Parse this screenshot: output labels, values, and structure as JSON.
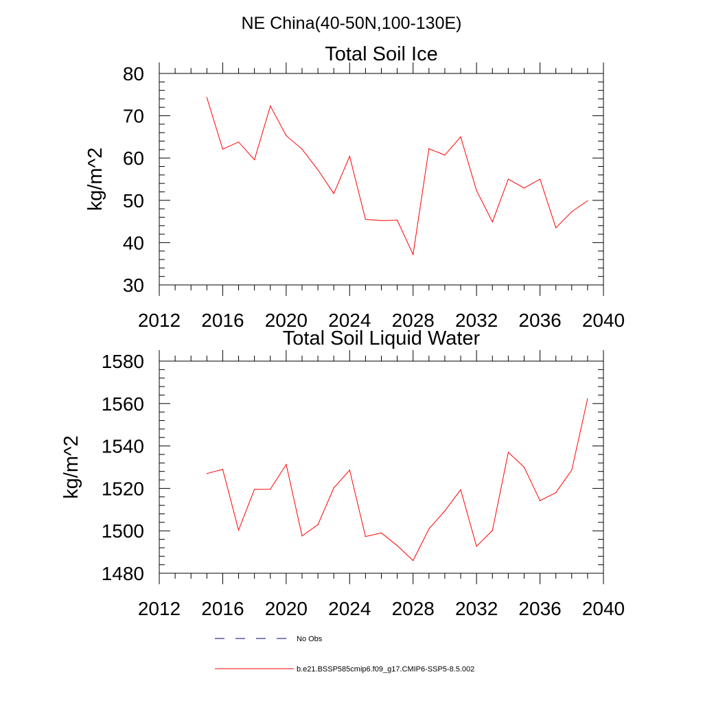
{
  "figure": {
    "suptitle": "NE China(40-50N,100-130E)"
  },
  "legend": [
    {
      "label": "No Obs",
      "style": "dashed",
      "color": "#000080"
    },
    {
      "label": "b.e21.BSSP585cmip6.f09_g17.CMIP6-SSP5-8.5.002",
      "style": "solid",
      "color": "#ff0000"
    }
  ],
  "chart_data": [
    {
      "type": "line",
      "title": "Total Soil Ice",
      "ylabel": "kg/m^2",
      "xlabel": "",
      "xlim": [
        2012,
        2040
      ],
      "ylim": [
        30,
        80
      ],
      "xticks": [
        2012,
        2016,
        2020,
        2024,
        2028,
        2032,
        2036,
        2040
      ],
      "yticks": [
        30,
        40,
        50,
        60,
        70,
        80
      ],
      "grid": false,
      "series": [
        {
          "name": "b.e21.BSSP585cmip6.f09_g17.CMIP6-SSP5-8.5.002",
          "color": "#ff0000",
          "x": [
            2015,
            2016,
            2017,
            2018,
            2019,
            2020,
            2021,
            2022,
            2023,
            2024,
            2025,
            2026,
            2027,
            2028,
            2029,
            2030,
            2031,
            2032,
            2033,
            2034,
            2035,
            2036,
            2037,
            2038,
            2039
          ],
          "y": [
            74.3,
            62.1,
            63.8,
            59.6,
            72.3,
            65.3,
            62.1,
            57.2,
            51.6,
            60.4,
            45.5,
            45.2,
            45.3,
            37.2,
            62.2,
            60.7,
            65.0,
            52.3,
            44.9,
            55.0,
            52.9,
            55.0,
            43.5,
            47.3,
            49.9
          ]
        }
      ]
    },
    {
      "type": "line",
      "title": "Total Soil Liquid Water",
      "ylabel": "kg/m^2",
      "xlabel": "",
      "xlim": [
        2012,
        2040
      ],
      "ylim": [
        1480,
        1580
      ],
      "xticks": [
        2012,
        2016,
        2020,
        2024,
        2028,
        2032,
        2036,
        2040
      ],
      "yticks": [
        1480,
        1500,
        1520,
        1540,
        1560,
        1580
      ],
      "grid": false,
      "series": [
        {
          "name": "b.e21.BSSP585cmip6.f09_g17.CMIP6-SSP5-8.5.002",
          "color": "#ff0000",
          "x": [
            2015,
            2016,
            2017,
            2018,
            2019,
            2020,
            2021,
            2022,
            2023,
            2024,
            2025,
            2026,
            2027,
            2028,
            2029,
            2030,
            2031,
            2032,
            2033,
            2034,
            2035,
            2036,
            2037,
            2038,
            2039
          ],
          "y": [
            1527.0,
            1529.0,
            1500.3,
            1519.5,
            1519.6,
            1531.3,
            1497.6,
            1502.9,
            1520.2,
            1528.6,
            1497.3,
            1499.0,
            1493.0,
            1486.0,
            1500.9,
            1509.4,
            1519.4,
            1492.7,
            1500.2,
            1537.0,
            1530.0,
            1514.2,
            1518.0,
            1528.6,
            1562.3
          ]
        }
      ]
    }
  ]
}
